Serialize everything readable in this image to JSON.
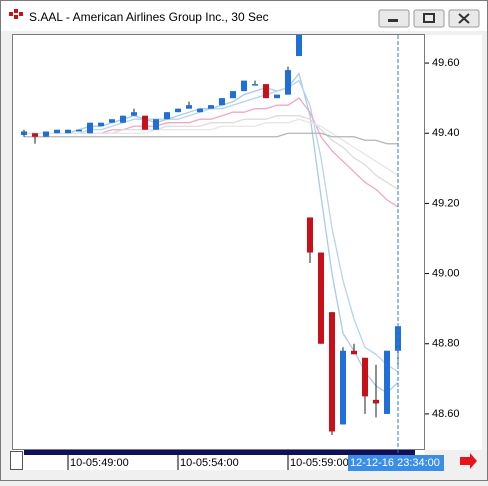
{
  "window": {
    "title": "S.AAL - American Airlines Group Inc., 30 Sec"
  },
  "chart_data": {
    "type": "candlestick",
    "categories": [
      null,
      null,
      null,
      null,
      "10-05:49:00",
      null,
      null,
      null,
      null,
      null,
      null,
      null,
      null,
      null,
      "10-05:54:00",
      null,
      null,
      null,
      null,
      null,
      null,
      null,
      null,
      null,
      "10-05:59:00",
      null,
      null,
      null,
      null,
      null,
      null,
      null,
      null,
      null,
      null
    ],
    "open": [
      49.395,
      49.4,
      49.39,
      49.4,
      49.4,
      49.405,
      49.4,
      49.42,
      49.43,
      49.43,
      49.45,
      49.45,
      49.41,
      49.44,
      49.46,
      49.47,
      49.46,
      49.47,
      49.48,
      49.5,
      49.52,
      49.54,
      49.54,
      49.5,
      49.51,
      49.62,
      49.16,
      49.06,
      48.89,
      48.57,
      48.78,
      48.76,
      48.64,
      48.6,
      48.78
    ],
    "high": [
      49.41,
      49.4,
      49.405,
      49.41,
      49.41,
      49.41,
      49.43,
      49.43,
      49.44,
      49.45,
      49.47,
      49.45,
      49.44,
      49.46,
      49.47,
      49.49,
      49.47,
      49.48,
      49.5,
      49.52,
      49.55,
      49.55,
      49.54,
      49.51,
      49.59,
      49.68,
      49.16,
      49.06,
      48.89,
      48.79,
      48.8,
      48.76,
      48.74,
      48.78,
      48.85
    ],
    "low": [
      49.39,
      49.37,
      49.39,
      49.4,
      49.4,
      49.405,
      49.4,
      49.42,
      49.43,
      49.43,
      49.45,
      49.41,
      49.41,
      49.44,
      49.46,
      49.47,
      49.46,
      49.47,
      49.48,
      49.5,
      49.52,
      49.54,
      49.5,
      49.5,
      49.51,
      49.62,
      49.03,
      48.8,
      48.54,
      48.57,
      48.77,
      48.6,
      48.59,
      48.6,
      48.74
    ],
    "close": [
      49.405,
      49.39,
      49.405,
      49.41,
      49.41,
      49.41,
      49.43,
      49.43,
      49.44,
      49.45,
      49.46,
      49.41,
      49.44,
      49.46,
      49.47,
      49.48,
      49.47,
      49.48,
      49.5,
      49.52,
      49.55,
      49.54,
      49.5,
      49.51,
      49.58,
      49.68,
      49.06,
      48.8,
      48.55,
      48.78,
      48.77,
      48.65,
      48.63,
      48.78,
      48.85
    ],
    "up_color": "#1f6fd6",
    "down_color": "#c8101a",
    "overlays": [
      {
        "color": "#a9c9ec",
        "values": [
          49.4,
          49.4,
          49.4,
          49.4,
          49.4,
          49.41,
          49.42,
          49.42,
          49.43,
          49.44,
          49.45,
          49.44,
          49.43,
          49.44,
          49.45,
          49.46,
          49.47,
          49.47,
          49.48,
          49.49,
          49.51,
          49.52,
          49.53,
          49.52,
          49.53,
          49.57,
          49.45,
          49.22,
          49.0,
          48.83,
          48.78,
          48.72,
          48.68,
          48.66,
          48.69
        ]
      },
      {
        "color": "#b8d2ef",
        "values": [
          49.4,
          49.4,
          49.4,
          49.4,
          49.4,
          49.4,
          49.41,
          49.41,
          49.42,
          49.43,
          49.44,
          49.44,
          49.44,
          49.44,
          49.44,
          49.45,
          49.46,
          49.47,
          49.47,
          49.48,
          49.49,
          49.5,
          49.51,
          49.52,
          49.53,
          49.55,
          49.48,
          49.33,
          49.13,
          48.98,
          48.87,
          48.79,
          48.77,
          48.74,
          48.72
        ]
      },
      {
        "color": "#f0a6c8",
        "values": [
          49.4,
          49.4,
          49.4,
          49.4,
          49.4,
          49.4,
          49.4,
          49.4,
          49.41,
          49.41,
          49.42,
          49.42,
          49.42,
          49.43,
          49.43,
          49.43,
          49.44,
          49.44,
          49.45,
          49.46,
          49.46,
          49.47,
          49.47,
          49.48,
          49.48,
          49.5,
          49.46,
          49.39,
          49.35,
          49.32,
          49.29,
          49.26,
          49.24,
          49.21,
          49.19
        ]
      },
      {
        "color": "#dcdcdc",
        "values": [
          49.4,
          49.4,
          49.4,
          49.4,
          49.4,
          49.4,
          49.4,
          49.4,
          49.4,
          49.41,
          49.41,
          49.41,
          49.41,
          49.42,
          49.42,
          49.42,
          49.42,
          49.43,
          49.43,
          49.43,
          49.44,
          49.44,
          49.44,
          49.45,
          49.45,
          49.45,
          49.44,
          49.41,
          49.38,
          49.36,
          49.33,
          49.31,
          49.28,
          49.26,
          49.24
        ]
      },
      {
        "color": "#e6e6e6",
        "values": [
          49.4,
          49.4,
          49.4,
          49.4,
          49.4,
          49.4,
          49.4,
          49.4,
          49.4,
          49.4,
          49.4,
          49.4,
          49.41,
          49.41,
          49.41,
          49.41,
          49.41,
          49.41,
          49.42,
          49.42,
          49.42,
          49.42,
          49.43,
          49.43,
          49.43,
          49.44,
          49.43,
          49.42,
          49.4,
          49.38,
          49.36,
          49.34,
          49.32,
          49.3,
          49.28
        ]
      },
      {
        "color": "#b4b4b4",
        "values": [
          49.39,
          49.39,
          49.39,
          49.39,
          49.39,
          49.39,
          49.39,
          49.39,
          49.39,
          49.39,
          49.39,
          49.39,
          49.39,
          49.39,
          49.39,
          49.39,
          49.39,
          49.39,
          49.39,
          49.39,
          49.39,
          49.39,
          49.39,
          49.39,
          49.4,
          49.4,
          49.4,
          49.4,
          49.39,
          49.39,
          49.39,
          49.38,
          49.38,
          49.37,
          49.37
        ]
      }
    ],
    "ylim": [
      48.5,
      49.68
    ],
    "yticks": [
      {
        "value": 48.6,
        "label": "48.60"
      },
      {
        "value": 48.8,
        "label": "48.80"
      },
      {
        "value": 49.0,
        "label": "49.00"
      },
      {
        "value": 49.2,
        "label": "49.20"
      },
      {
        "value": 49.4,
        "label": "49.40"
      },
      {
        "value": 49.6,
        "label": "49.60"
      }
    ],
    "cursor_label": "12-12-16 23:34:00",
    "grid": false
  }
}
